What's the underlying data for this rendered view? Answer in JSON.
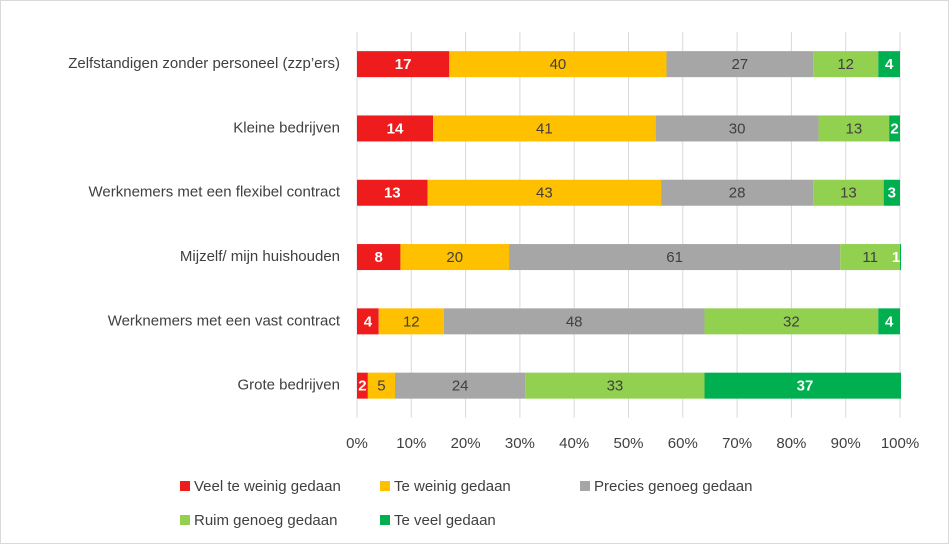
{
  "chart_data": {
    "type": "stacked_bar_horizontal",
    "categories": [
      "Zelfstandigen zonder personeel (zzp’ers)",
      "Kleine bedrijven",
      "Werknemers met een flexibel contract",
      "Mijzelf/ mijn huishouden",
      "Werknemers met een vast contract",
      "Grote bedrijven"
    ],
    "series": [
      {
        "name": "Veel te weinig gedaan",
        "color": "#ee1c1c",
        "values": [
          17,
          14,
          13,
          8,
          4,
          2
        ]
      },
      {
        "name": "Te weinig gedaan",
        "color": "#ffc000",
        "values": [
          40,
          41,
          43,
          20,
          12,
          5
        ]
      },
      {
        "name": "Precies genoeg gedaan",
        "color": "#a6a6a6",
        "values": [
          27,
          30,
          28,
          61,
          48,
          24
        ]
      },
      {
        "name": "Ruim genoeg gedaan",
        "color": "#92d050",
        "values": [
          12,
          13,
          13,
          11,
          32,
          33
        ]
      },
      {
        "name": "Te veel gedaan",
        "color": "#00b050",
        "values": [
          4,
          2,
          3,
          1,
          4,
          37
        ]
      }
    ],
    "xlim": [
      0,
      100
    ],
    "xticks": [
      {
        "value": 0,
        "label": "0%"
      },
      {
        "value": 10,
        "label": "10%"
      },
      {
        "value": 20,
        "label": "20%"
      },
      {
        "value": 30,
        "label": "30%"
      },
      {
        "value": 40,
        "label": "40%"
      },
      {
        "value": 50,
        "label": "50%"
      },
      {
        "value": 60,
        "label": "60%"
      },
      {
        "value": 70,
        "label": "70%"
      },
      {
        "value": 80,
        "label": "80%"
      },
      {
        "value": 90,
        "label": "90%"
      },
      {
        "value": 100,
        "label": "100%"
      }
    ],
    "grid": true
  }
}
